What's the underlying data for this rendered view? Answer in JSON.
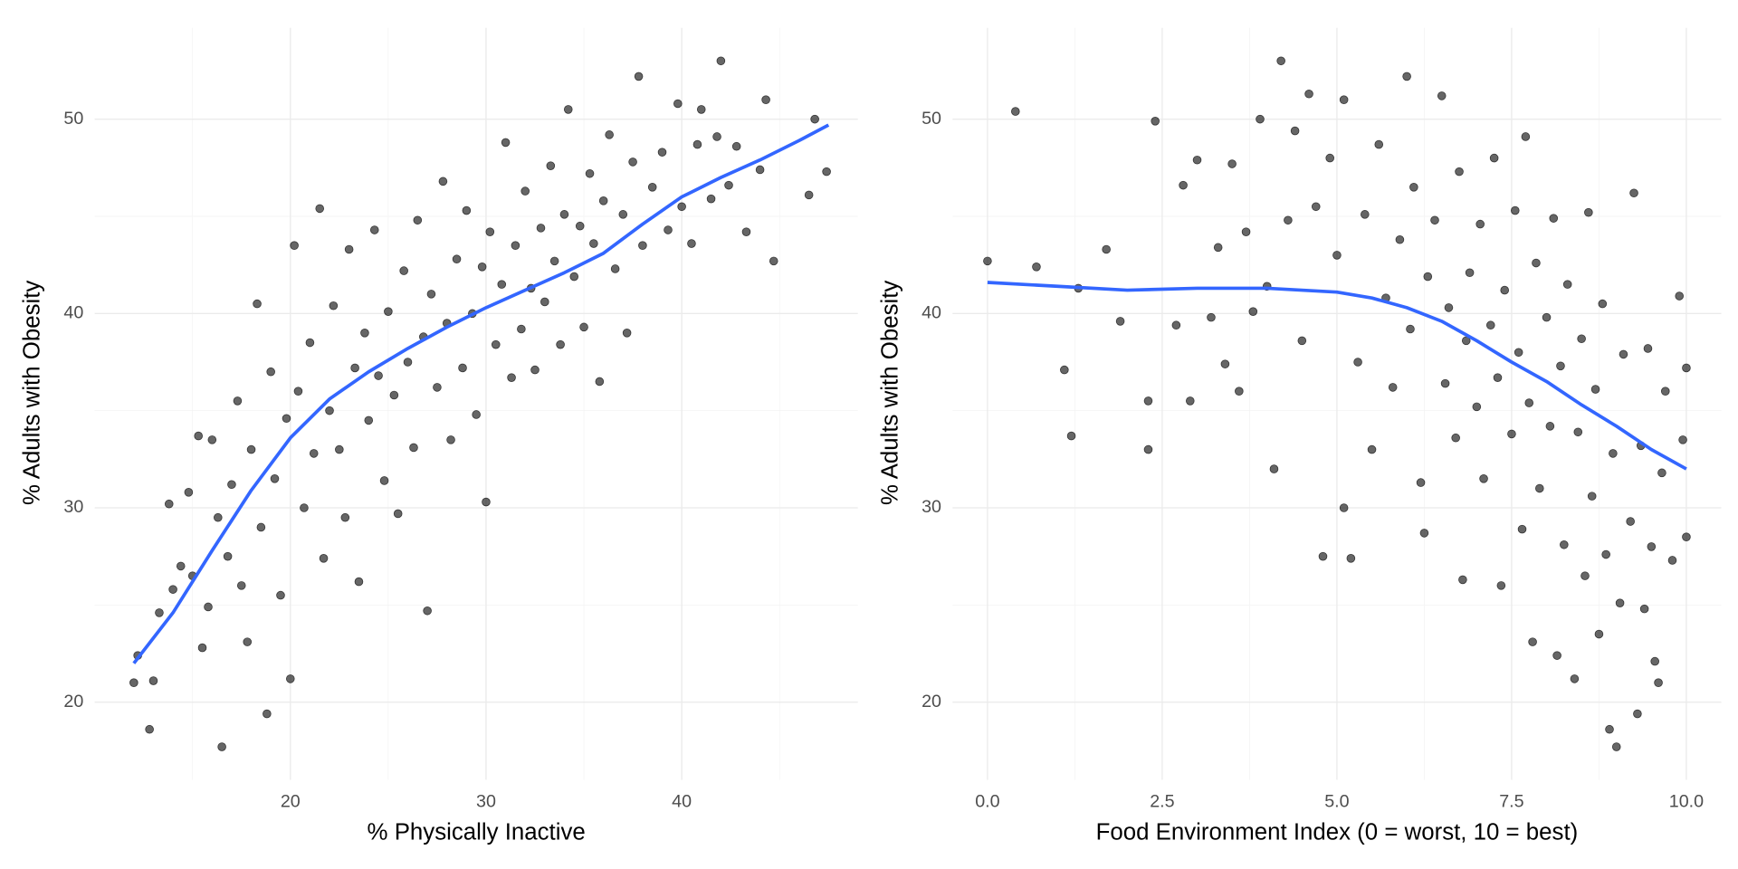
{
  "chart_data": [
    {
      "type": "scatter",
      "xlabel": "% Physically Inactive",
      "ylabel": "% Adults with Obesity",
      "xlim": [
        10,
        49
      ],
      "ylim": [
        16,
        54.7
      ],
      "xticks": [
        20,
        30,
        40
      ],
      "yticks": [
        20,
        30,
        40,
        50
      ],
      "x_minor_grid": [
        15,
        25,
        35,
        45
      ],
      "y_minor_grid": [
        25,
        35,
        45
      ],
      "grid": true,
      "points": {
        "color": "#000000",
        "x": [
          12,
          12.2,
          12.8,
          13,
          13.3,
          13.8,
          14,
          14.4,
          14.8,
          15,
          15.3,
          15.5,
          15.8,
          16,
          16.3,
          16.5,
          16.8,
          17,
          17.3,
          17.5,
          17.8,
          18,
          18.3,
          18.5,
          18.8,
          19,
          19.2,
          19.5,
          19.8,
          20,
          20.2,
          20.4,
          20.7,
          21,
          21.2,
          21.5,
          21.7,
          22,
          22.2,
          22.5,
          22.8,
          23,
          23.3,
          23.5,
          23.8,
          24,
          24.3,
          24.5,
          24.8,
          25,
          25.3,
          25.5,
          25.8,
          26,
          26.3,
          26.5,
          26.8,
          27,
          27.2,
          27.5,
          27.8,
          28,
          28.2,
          28.5,
          28.8,
          29,
          29.3,
          29.5,
          29.8,
          30,
          30.2,
          30.5,
          30.8,
          31,
          31.3,
          31.5,
          31.8,
          32,
          32.3,
          32.5,
          32.8,
          33,
          33.3,
          33.5,
          33.8,
          34,
          34.2,
          34.5,
          34.8,
          35,
          35.3,
          35.5,
          35.8,
          36,
          36.3,
          36.6,
          37,
          37.2,
          37.5,
          37.8,
          38,
          38.5,
          39,
          39.3,
          39.8,
          40,
          40.5,
          40.8,
          41,
          41.5,
          41.8,
          42,
          42.4,
          42.8,
          43.3,
          44,
          44.3,
          44.7,
          46.5,
          46.8,
          47.4
        ],
        "y": [
          21,
          22.4,
          18.6,
          21.1,
          24.6,
          30.2,
          25.8,
          27,
          30.8,
          26.5,
          33.7,
          22.8,
          24.9,
          33.5,
          29.5,
          17.7,
          27.5,
          31.2,
          35.5,
          26,
          23.1,
          33,
          40.5,
          29,
          19.4,
          37,
          31.5,
          25.5,
          34.6,
          21.2,
          43.5,
          36,
          30,
          38.5,
          32.8,
          45.4,
          27.4,
          35,
          40.4,
          33,
          29.5,
          43.3,
          37.2,
          26.2,
          39,
          34.5,
          44.3,
          36.8,
          31.4,
          40.1,
          35.8,
          29.7,
          42.2,
          37.5,
          33.1,
          44.8,
          38.8,
          24.7,
          41,
          36.2,
          46.8,
          39.5,
          33.5,
          42.8,
          37.2,
          45.3,
          40,
          34.8,
          42.4,
          30.3,
          44.2,
          38.4,
          41.5,
          48.8,
          36.7,
          43.5,
          39.2,
          46.3,
          41.3,
          37.1,
          44.4,
          40.6,
          47.6,
          42.7,
          38.4,
          45.1,
          50.5,
          41.9,
          44.5,
          39.3,
          47.2,
          43.6,
          36.5,
          45.8,
          49.2,
          42.3,
          45.1,
          39,
          47.8,
          52.2,
          43.5,
          46.5,
          48.3,
          44.3,
          50.8,
          45.5,
          43.6,
          48.7,
          50.5,
          45.9,
          49.1,
          53,
          46.6,
          48.6,
          44.2,
          47.4,
          51,
          42.7,
          46.1,
          50,
          47.3
        ]
      },
      "smooth": {
        "color": "#3366ff",
        "x": [
          12,
          14,
          16,
          18,
          20,
          22,
          24,
          26,
          28,
          30,
          32,
          34,
          36,
          38,
          40,
          42,
          44,
          46,
          47.5
        ],
        "y": [
          22,
          24.6,
          27.8,
          30.9,
          33.6,
          35.6,
          37,
          38.2,
          39.3,
          40.3,
          41.2,
          42.1,
          43.1,
          44.6,
          46,
          47,
          47.9,
          48.9,
          49.7
        ]
      }
    },
    {
      "type": "scatter",
      "xlabel": "Food Environment Index (0 = worst, 10 = best)",
      "ylabel": "% Adults with Obesity",
      "xlim": [
        -0.5,
        10.5
      ],
      "ylim": [
        16,
        54.7
      ],
      "xticks": [
        {
          "value": 0,
          "label": "0.0"
        },
        2.5,
        {
          "value": 5,
          "label": "5.0"
        },
        7.5,
        {
          "value": 10,
          "label": "10.0"
        }
      ],
      "yticks": [
        20,
        30,
        40,
        50
      ],
      "x_minor_grid": [
        1.25,
        3.75,
        6.25,
        8.75
      ],
      "y_minor_grid": [
        25,
        35,
        45
      ],
      "grid": true,
      "points": {
        "color": "#000000",
        "x": [
          0,
          0.4,
          0.7,
          1.1,
          1.2,
          1.3,
          1.7,
          1.9,
          2.3,
          2.3,
          2.4,
          2.7,
          2.8,
          2.9,
          3.0,
          3.2,
          3.3,
          3.4,
          3.5,
          3.6,
          3.7,
          3.8,
          3.9,
          4.0,
          4.1,
          4.2,
          4.3,
          4.4,
          4.5,
          4.6,
          4.7,
          4.8,
          4.9,
          5.0,
          5.1,
          5.1,
          5.2,
          5.3,
          5.4,
          5.5,
          5.6,
          5.7,
          5.8,
          5.9,
          6.0,
          6.05,
          6.1,
          6.2,
          6.25,
          6.3,
          6.4,
          6.5,
          6.55,
          6.6,
          6.7,
          6.75,
          6.8,
          6.85,
          6.9,
          7.0,
          7.05,
          7.1,
          7.2,
          7.25,
          7.3,
          7.35,
          7.4,
          7.5,
          7.55,
          7.6,
          7.65,
          7.7,
          7.75,
          7.8,
          7.85,
          7.9,
          8.0,
          8.05,
          8.1,
          8.15,
          8.2,
          8.25,
          8.3,
          8.4,
          8.45,
          8.5,
          8.55,
          8.6,
          8.65,
          8.7,
          8.75,
          8.8,
          8.85,
          8.9,
          8.95,
          9.0,
          9.05,
          9.1,
          9.2,
          9.25,
          9.3,
          9.35,
          9.4,
          9.45,
          9.5,
          9.55,
          9.6,
          9.65,
          9.7,
          9.8,
          9.9,
          9.95,
          10.0,
          10.0
        ],
        "y": [
          42.7,
          50.4,
          42.4,
          37.1,
          33.7,
          41.3,
          43.3,
          39.6,
          33,
          35.5,
          49.9,
          39.4,
          46.6,
          35.5,
          47.9,
          39.8,
          43.4,
          37.4,
          47.7,
          36.0,
          44.2,
          40.1,
          50.0,
          41.4,
          32.0,
          53.0,
          44.8,
          49.4,
          38.6,
          51.3,
          45.5,
          27.5,
          48.0,
          43.0,
          30.0,
          51.0,
          27.4,
          37.5,
          45.1,
          33.0,
          48.7,
          40.8,
          36.2,
          43.8,
          52.2,
          39.2,
          46.5,
          31.3,
          28.7,
          41.9,
          44.8,
          51.2,
          36.4,
          40.3,
          33.6,
          47.3,
          26.3,
          38.6,
          42.1,
          35.2,
          44.6,
          31.5,
          39.4,
          48.0,
          36.7,
          26.0,
          41.2,
          33.8,
          45.3,
          38.0,
          28.9,
          49.1,
          35.4,
          23.1,
          42.6,
          31.0,
          39.8,
          34.2,
          44.9,
          22.4,
          37.3,
          28.1,
          41.5,
          21.2,
          33.9,
          38.7,
          26.5,
          45.2,
          30.6,
          36.1,
          23.5,
          40.5,
          27.6,
          18.6,
          32.8,
          17.7,
          25.1,
          37.9,
          29.3,
          46.2,
          19.4,
          33.2,
          24.8,
          38.2,
          28.0,
          22.1,
          21.0,
          31.8,
          36.0,
          27.3,
          40.9,
          33.5,
          28.5,
          37.2
        ]
      },
      "smooth": {
        "color": "#3366ff",
        "x": [
          0,
          1,
          2,
          3,
          4,
          5,
          5.5,
          6,
          6.5,
          7,
          7.5,
          8,
          8.5,
          9,
          9.5,
          10
        ],
        "y": [
          41.6,
          41.4,
          41.2,
          41.3,
          41.3,
          41.1,
          40.8,
          40.3,
          39.6,
          38.6,
          37.5,
          36.5,
          35.3,
          34.2,
          33,
          32
        ]
      }
    }
  ]
}
